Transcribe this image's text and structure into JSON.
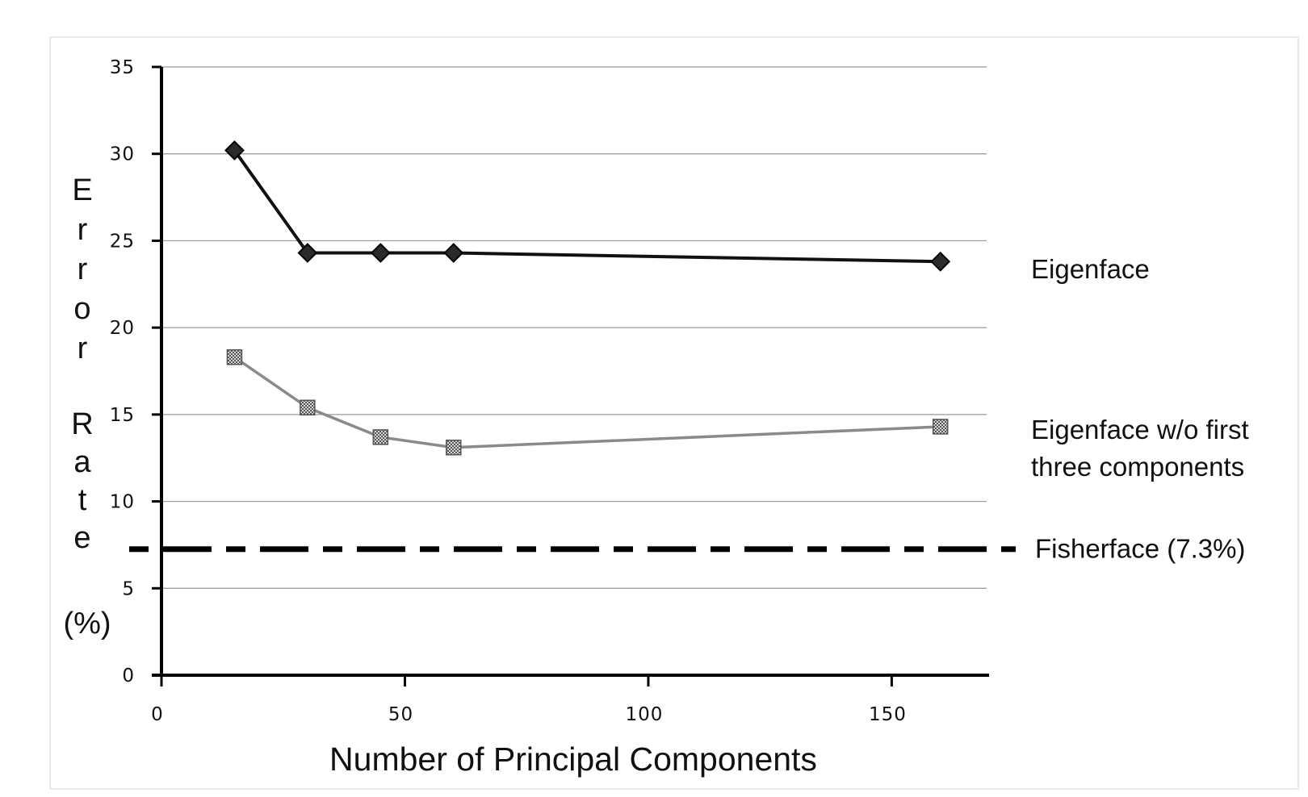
{
  "chart_data": {
    "type": "line",
    "xlabel": "Number of Principal Components",
    "ylabel": "Error Rate (%)",
    "xlim": [
      0,
      170
    ],
    "ylim": [
      0,
      35
    ],
    "x_ticks": [
      0,
      50,
      100,
      150
    ],
    "y_ticks": [
      0,
      5,
      10,
      15,
      20,
      25,
      30,
      35
    ],
    "grid": "horizontal",
    "series": [
      {
        "name": "Eigenface",
        "marker": "diamond",
        "color": "#111111",
        "x": [
          15,
          30,
          45,
          60,
          160
        ],
        "values": [
          30.2,
          24.3,
          24.3,
          24.3,
          23.8
        ]
      },
      {
        "name": "Eigenface w/o first three components",
        "label_lines": [
          "Eigenface w/o first",
          "three components"
        ],
        "marker": "square",
        "color": "#777777",
        "x": [
          15,
          30,
          45,
          60,
          160
        ],
        "values": [
          18.3,
          15.4,
          13.7,
          13.1,
          14.3
        ]
      }
    ],
    "reference_lines": [
      {
        "name": "Fisherface (7.3%)",
        "value": 7.3,
        "style": "dashed",
        "color": "#000000"
      }
    ]
  }
}
